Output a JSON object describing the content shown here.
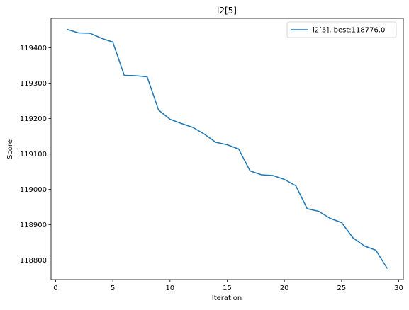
{
  "chart_data": {
    "type": "line",
    "title": "i2[5]",
    "xlabel": "Iteration",
    "ylabel": "Score",
    "xlim": [
      -0.4,
      30.4
    ],
    "ylim": [
      118745,
      119483
    ],
    "xticks": [
      0,
      5,
      10,
      15,
      20,
      25,
      30
    ],
    "yticks": [
      118800,
      118900,
      119000,
      119100,
      119200,
      119300,
      119400
    ],
    "legend_position": "top-right",
    "grid": false,
    "series": [
      {
        "name": "i2[5], best:118776.0",
        "color": "#1f77b4",
        "x": [
          1,
          2,
          3,
          4,
          5,
          6,
          7,
          8,
          9,
          10,
          11,
          12,
          13,
          14,
          15,
          16,
          17,
          18,
          19,
          20,
          21,
          22,
          23,
          24,
          25,
          26,
          27,
          28,
          29
        ],
        "y": [
          119452,
          119442,
          119441,
          119427,
          119416,
          119322,
          119321,
          119318,
          119224,
          119198,
          119186,
          119175,
          119156,
          119133,
          119126,
          119114,
          119052,
          119041,
          119039,
          119028,
          119010,
          118945,
          118938,
          118918,
          118906,
          118863,
          118840,
          118828,
          118776
        ]
      }
    ]
  }
}
